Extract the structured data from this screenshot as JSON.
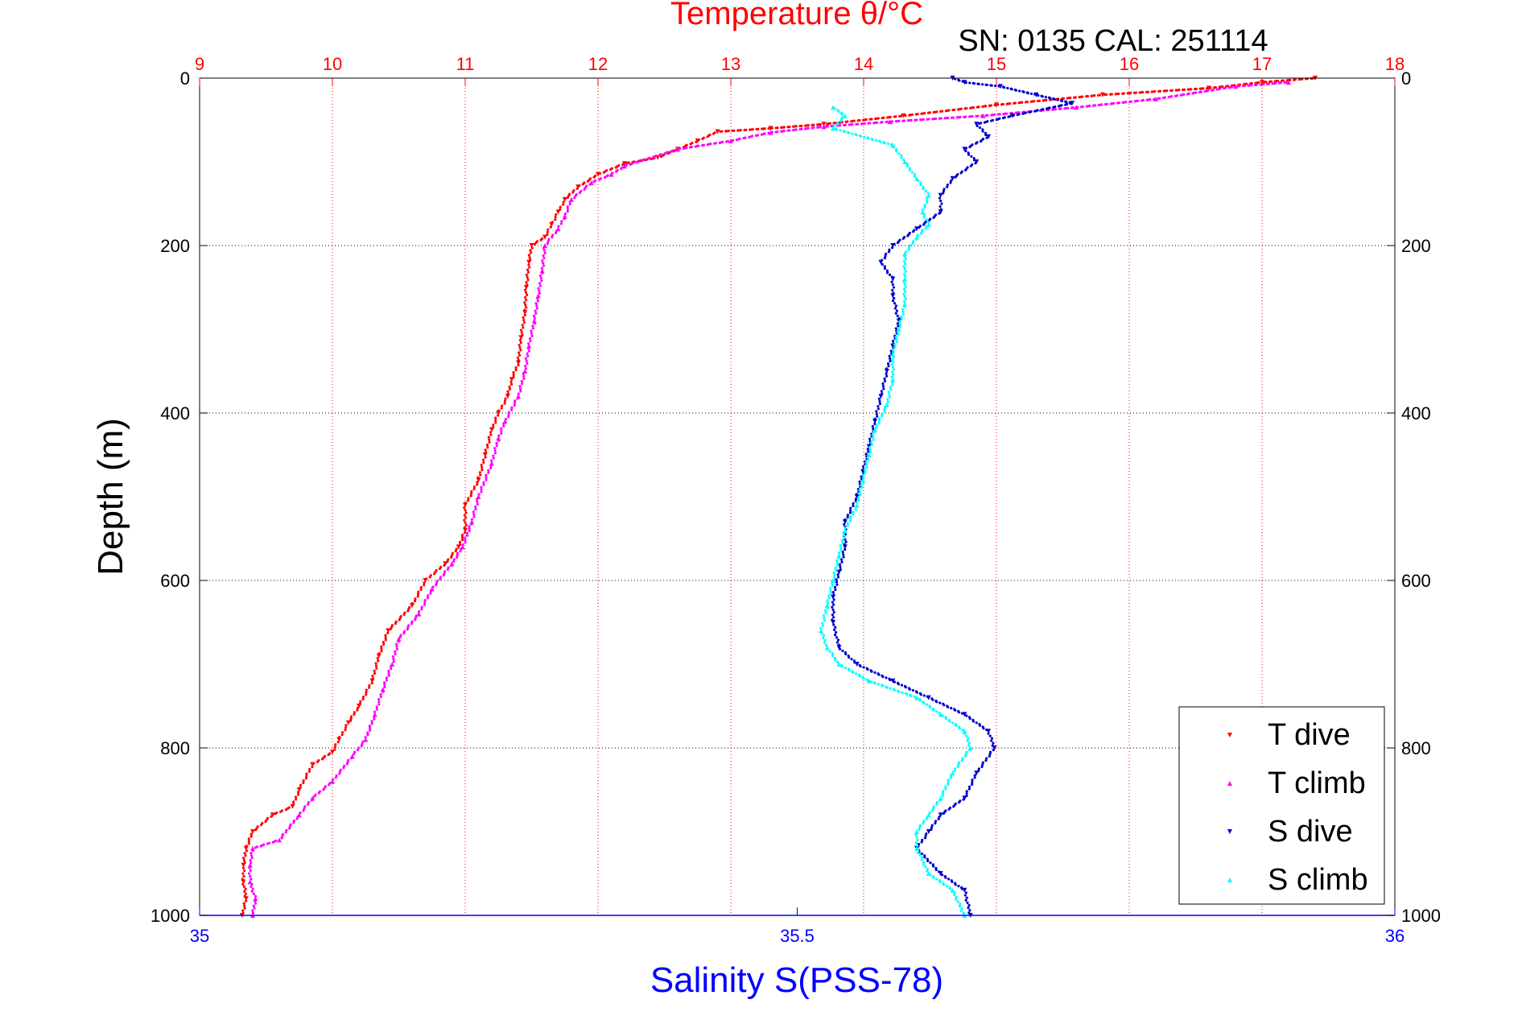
{
  "chart_data": {
    "type": "scatter",
    "title": "Temperature θ/°C",
    "subtitle": "SN: 0135  CAL: 251114",
    "ylabel": "Depth (m)",
    "xlabel_bottom": "Salinity S(PSS-78)",
    "ylim": [
      0,
      1000
    ],
    "y_inverted": true,
    "y_ticks": [
      "0",
      "200",
      "400",
      "600",
      "800",
      "1000"
    ],
    "x_top": {
      "label": "Temperature θ/°C",
      "lim": [
        9,
        18
      ],
      "ticks": [
        "9",
        "10",
        "11",
        "12",
        "13",
        "14",
        "15",
        "16",
        "17",
        "18"
      ]
    },
    "x_bottom": {
      "label": "Salinity S(PSS-78)",
      "lim": [
        35,
        36
      ],
      "ticks": [
        "35",
        "35.5",
        "36"
      ]
    },
    "grid": true,
    "legend_position": "bottom-right",
    "colors": {
      "temperature_axis": "#ff0000",
      "salinity_axis": "#0000ff",
      "t_dive": "#ff0000",
      "t_climb": "#ff00ff",
      "s_dive": "#0000cc",
      "s_climb": "#00ffff"
    },
    "series": [
      {
        "name": "T dive",
        "axis": "temperature",
        "marker": "triangle-down",
        "points": [
          [
            17.4,
            0
          ],
          [
            17.0,
            5
          ],
          [
            16.6,
            12
          ],
          [
            15.8,
            20
          ],
          [
            15.0,
            32
          ],
          [
            14.3,
            45
          ],
          [
            13.7,
            55
          ],
          [
            13.3,
            60
          ],
          [
            12.9,
            64
          ],
          [
            12.75,
            75
          ],
          [
            12.6,
            85
          ],
          [
            12.45,
            95
          ],
          [
            12.2,
            102
          ],
          [
            12.0,
            115
          ],
          [
            11.85,
            130
          ],
          [
            11.75,
            145
          ],
          [
            11.7,
            160
          ],
          [
            11.65,
            175
          ],
          [
            11.6,
            190
          ],
          [
            11.5,
            200
          ],
          [
            11.48,
            220
          ],
          [
            11.46,
            250
          ],
          [
            11.45,
            280
          ],
          [
            11.42,
            310
          ],
          [
            11.4,
            340
          ],
          [
            11.35,
            360
          ],
          [
            11.32,
            380
          ],
          [
            11.25,
            400
          ],
          [
            11.2,
            420
          ],
          [
            11.15,
            450
          ],
          [
            11.1,
            480
          ],
          [
            11.0,
            510
          ],
          [
            11.0,
            540
          ],
          [
            10.95,
            560
          ],
          [
            10.85,
            580
          ],
          [
            10.7,
            600
          ],
          [
            10.6,
            630
          ],
          [
            10.42,
            660
          ],
          [
            10.35,
            690
          ],
          [
            10.3,
            720
          ],
          [
            10.2,
            750
          ],
          [
            10.12,
            770
          ],
          [
            10.05,
            790
          ],
          [
            10.0,
            805
          ],
          [
            9.85,
            820
          ],
          [
            9.75,
            850
          ],
          [
            9.7,
            870
          ],
          [
            9.55,
            880
          ],
          [
            9.4,
            900
          ],
          [
            9.35,
            920
          ],
          [
            9.33,
            940
          ],
          [
            9.33,
            960
          ],
          [
            9.35,
            980
          ],
          [
            9.32,
            1000
          ]
        ]
      },
      {
        "name": "T climb",
        "axis": "temperature",
        "marker": "triangle-up",
        "points": [
          [
            17.2,
            5
          ],
          [
            16.8,
            10
          ],
          [
            16.2,
            25
          ],
          [
            15.6,
            35
          ],
          [
            14.9,
            45
          ],
          [
            14.2,
            52
          ],
          [
            13.7,
            58
          ],
          [
            13.3,
            65
          ],
          [
            13.0,
            75
          ],
          [
            12.6,
            85
          ],
          [
            12.2,
            105
          ],
          [
            12.1,
            115
          ],
          [
            11.95,
            125
          ],
          [
            11.8,
            145
          ],
          [
            11.75,
            165
          ],
          [
            11.7,
            180
          ],
          [
            11.6,
            200
          ],
          [
            11.58,
            230
          ],
          [
            11.55,
            260
          ],
          [
            11.52,
            290
          ],
          [
            11.48,
            320
          ],
          [
            11.45,
            350
          ],
          [
            11.4,
            380
          ],
          [
            11.3,
            410
          ],
          [
            11.25,
            430
          ],
          [
            11.2,
            460
          ],
          [
            11.1,
            500
          ],
          [
            11.05,
            530
          ],
          [
            10.98,
            560
          ],
          [
            10.9,
            580
          ],
          [
            10.75,
            610
          ],
          [
            10.65,
            640
          ],
          [
            10.5,
            670
          ],
          [
            10.45,
            700
          ],
          [
            10.38,
            730
          ],
          [
            10.32,
            760
          ],
          [
            10.25,
            790
          ],
          [
            10.15,
            810
          ],
          [
            10.0,
            840
          ],
          [
            9.85,
            860
          ],
          [
            9.75,
            880
          ],
          [
            9.6,
            910
          ],
          [
            9.4,
            920
          ],
          [
            9.38,
            940
          ],
          [
            9.38,
            960
          ],
          [
            9.42,
            980
          ],
          [
            9.4,
            1000
          ]
        ]
      },
      {
        "name": "S dive",
        "axis": "salinity",
        "marker": "triangle-down",
        "points": [
          [
            35.63,
            0
          ],
          [
            35.64,
            5
          ],
          [
            35.67,
            10
          ],
          [
            35.7,
            20
          ],
          [
            35.73,
            30
          ],
          [
            35.68,
            45
          ],
          [
            35.65,
            55
          ],
          [
            35.66,
            70
          ],
          [
            35.64,
            85
          ],
          [
            35.65,
            100
          ],
          [
            35.63,
            120
          ],
          [
            35.62,
            140
          ],
          [
            35.62,
            160
          ],
          [
            35.6,
            180
          ],
          [
            35.58,
            200
          ],
          [
            35.57,
            220
          ],
          [
            35.58,
            240
          ],
          [
            35.58,
            260
          ],
          [
            35.585,
            290
          ],
          [
            35.58,
            320
          ],
          [
            35.575,
            350
          ],
          [
            35.57,
            380
          ],
          [
            35.565,
            410
          ],
          [
            35.56,
            440
          ],
          [
            35.555,
            470
          ],
          [
            35.55,
            500
          ],
          [
            35.54,
            530
          ],
          [
            35.54,
            560
          ],
          [
            35.535,
            590
          ],
          [
            35.53,
            620
          ],
          [
            35.53,
            650
          ],
          [
            35.535,
            680
          ],
          [
            35.55,
            700
          ],
          [
            35.58,
            720
          ],
          [
            35.61,
            740
          ],
          [
            35.64,
            760
          ],
          [
            35.66,
            780
          ],
          [
            35.665,
            800
          ],
          [
            35.65,
            830
          ],
          [
            35.64,
            860
          ],
          [
            35.62,
            880
          ],
          [
            35.61,
            900
          ],
          [
            35.6,
            920
          ],
          [
            35.62,
            950
          ],
          [
            35.64,
            970
          ],
          [
            35.645,
            1000
          ]
        ]
      },
      {
        "name": "S climb",
        "axis": "salinity",
        "marker": "triangle-up",
        "points": [
          [
            35.53,
            35
          ],
          [
            35.54,
            45
          ],
          [
            35.53,
            60
          ],
          [
            35.58,
            80
          ],
          [
            35.59,
            100
          ],
          [
            35.6,
            120
          ],
          [
            35.61,
            140
          ],
          [
            35.605,
            160
          ],
          [
            35.61,
            175
          ],
          [
            35.6,
            190
          ],
          [
            35.59,
            210
          ],
          [
            35.59,
            240
          ],
          [
            35.59,
            270
          ],
          [
            35.585,
            300
          ],
          [
            35.58,
            330
          ],
          [
            35.58,
            360
          ],
          [
            35.575,
            390
          ],
          [
            35.565,
            420
          ],
          [
            35.56,
            450
          ],
          [
            35.555,
            480
          ],
          [
            35.55,
            510
          ],
          [
            35.54,
            540
          ],
          [
            35.535,
            570
          ],
          [
            35.53,
            600
          ],
          [
            35.525,
            630
          ],
          [
            35.52,
            660
          ],
          [
            35.525,
            680
          ],
          [
            35.535,
            700
          ],
          [
            35.56,
            720
          ],
          [
            35.6,
            740
          ],
          [
            35.62,
            760
          ],
          [
            35.64,
            780
          ],
          [
            35.645,
            800
          ],
          [
            35.63,
            830
          ],
          [
            35.62,
            860
          ],
          [
            35.61,
            880
          ],
          [
            35.6,
            900
          ],
          [
            35.6,
            920
          ],
          [
            35.61,
            950
          ],
          [
            35.63,
            970
          ],
          [
            35.64,
            1000
          ]
        ]
      }
    ]
  }
}
